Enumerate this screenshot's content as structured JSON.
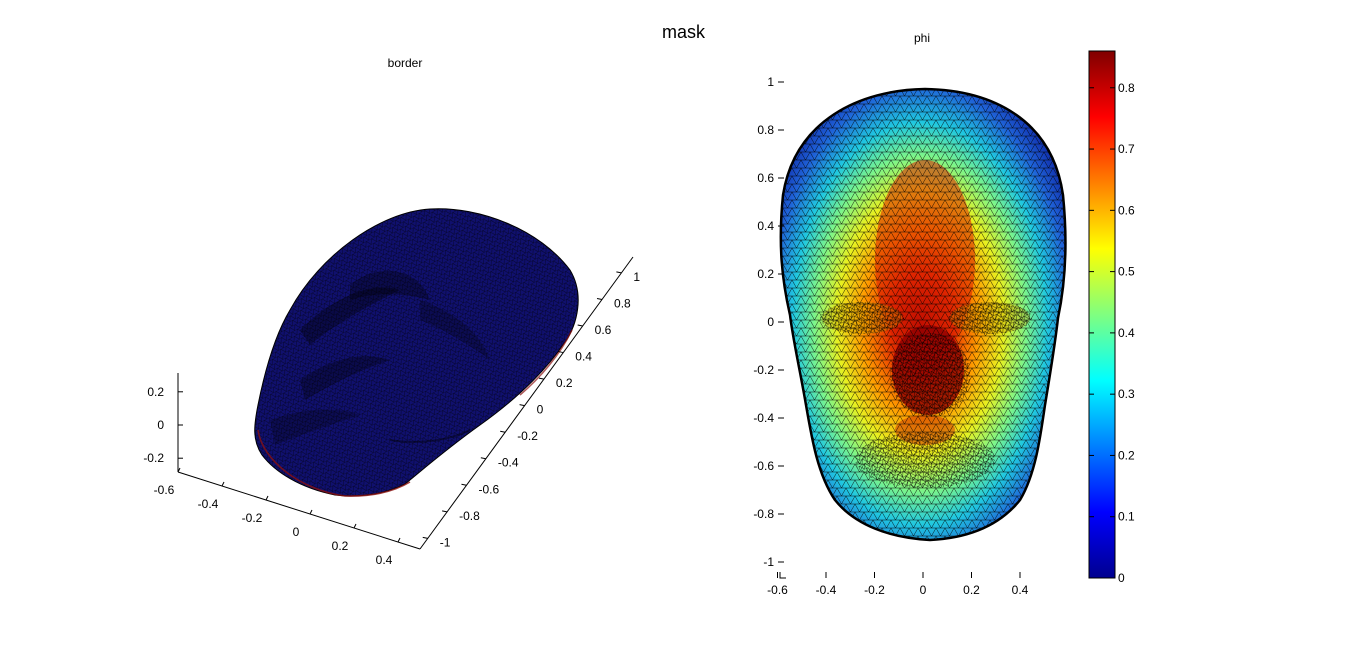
{
  "figure": {
    "title": "mask"
  },
  "colors": {
    "face_dark": "#10106e",
    "wire": "#000000",
    "edge_red": "#8a1010"
  },
  "chart_data": [
    {
      "type": "surface3d",
      "title": "border",
      "xlabel": "",
      "ylabel": "",
      "zlabel": "",
      "x_ticks": [
        -0.6,
        -0.4,
        -0.2,
        0,
        0.2,
        0.4
      ],
      "x_tick_labels": [
        "-0.6",
        "-0.4",
        "-0.2",
        "0",
        "0.2",
        "0.4"
      ],
      "y_ticks": [
        -1,
        -0.8,
        -0.6,
        -0.4,
        -0.2,
        0,
        0.2,
        0.4,
        0.6,
        0.8,
        1
      ],
      "y_tick_labels": [
        "-1",
        "-0.8",
        "-0.6",
        "-0.4",
        "-0.2",
        "0",
        "0.2",
        "0.4",
        "0.6",
        "0.8",
        "1"
      ],
      "z_ticks": [
        -0.2,
        0,
        0.2
      ],
      "z_tick_labels": [
        "-0.2",
        "0",
        "0.2"
      ],
      "colormap": "jet",
      "surface_value": 0,
      "grid": false
    },
    {
      "type": "heatmap",
      "title": "phi",
      "xlabel": "",
      "ylabel": "",
      "xlim": [
        -0.6,
        0.5
      ],
      "ylim": [
        -1.02,
        1.02
      ],
      "x_ticks": [
        -0.6,
        -0.4,
        -0.2,
        0,
        0.2,
        0.4
      ],
      "x_tick_labels": [
        "-0.6",
        "-0.4",
        "-0.2",
        "0",
        "0.2",
        "0.4"
      ],
      "y_ticks": [
        -1,
        -0.8,
        -0.6,
        -0.4,
        -0.2,
        0,
        0.2,
        0.4,
        0.6,
        0.8,
        1
      ],
      "y_tick_labels": [
        "-1",
        "-0.8",
        "-0.6",
        "-0.4",
        "-0.2",
        "0",
        "0.2",
        "0.4",
        "0.6",
        "0.8",
        "1"
      ],
      "colormap": "jet",
      "colorbar": {
        "range": [
          0,
          0.86
        ],
        "ticks": [
          0,
          0.1,
          0.2,
          0.3,
          0.4,
          0.5,
          0.6,
          0.7,
          0.8
        ],
        "tick_labels": [
          "0",
          "0.1",
          "0.2",
          "0.3",
          "0.4",
          "0.5",
          "0.6",
          "0.7",
          "0.8"
        ],
        "placement": "right"
      },
      "value_peak": 0.86,
      "grid": false
    }
  ]
}
